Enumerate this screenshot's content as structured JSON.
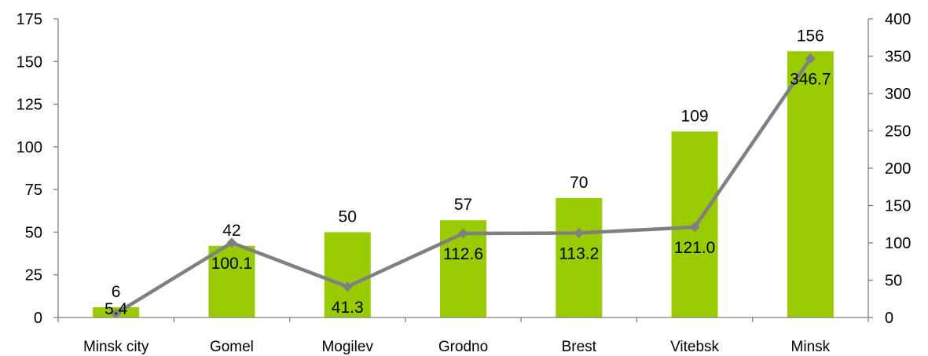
{
  "chart_data": {
    "type": "bar",
    "categories": [
      "Minsk city",
      "Gomel",
      "Mogilev",
      "Grodno",
      "Brest",
      "Vitebsk",
      "Minsk"
    ],
    "series": [
      {
        "type": "bar",
        "axis": "left",
        "color": "#99cc00",
        "values": [
          6,
          42,
          50,
          57,
          70,
          109,
          156
        ],
        "labels": [
          "6",
          "42",
          "50",
          "57",
          "70",
          "109",
          "156"
        ]
      },
      {
        "type": "line",
        "axis": "right",
        "color": "#808080",
        "marker": "diamond",
        "values": [
          5.4,
          100.1,
          41.3,
          112.6,
          113.2,
          121.0,
          346.7
        ],
        "labels": [
          "5.4",
          "100.1",
          "41.3",
          "112.6",
          "113.2",
          "121.0",
          "346.7"
        ]
      }
    ],
    "y_left": {
      "ylim": [
        0,
        175
      ],
      "ticks": [
        "0",
        "25",
        "50",
        "75",
        "100",
        "125",
        "150",
        "175"
      ]
    },
    "y_right": {
      "ylim": [
        0,
        400
      ],
      "ticks": [
        "0",
        "50",
        "100",
        "150",
        "200",
        "250",
        "300",
        "350",
        "400"
      ]
    },
    "grid": false,
    "legend": "none"
  }
}
